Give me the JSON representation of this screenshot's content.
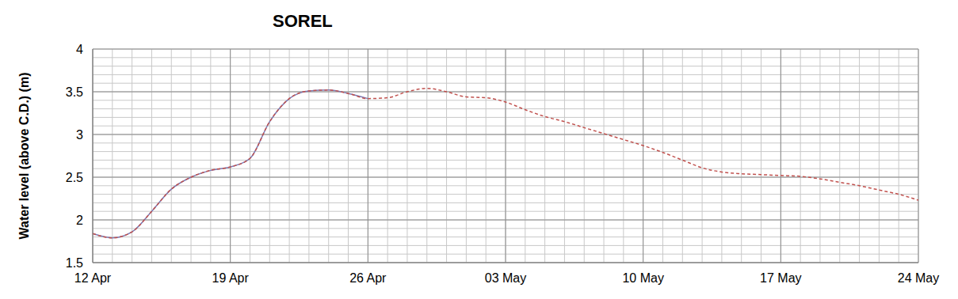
{
  "chart_data": {
    "type": "line",
    "title": "SOREL",
    "y_label": "Water level (above C.D.) (m)",
    "categories": [
      "12 Apr",
      null,
      null,
      null,
      null,
      null,
      null,
      "19 Apr",
      null,
      null,
      null,
      null,
      null,
      null,
      "26 Apr",
      null,
      null,
      null,
      null,
      null,
      null,
      "03 May",
      null,
      null,
      null,
      null,
      null,
      null,
      "10 May",
      null,
      null,
      null,
      null,
      null,
      null,
      "17 May",
      null,
      null,
      null,
      null,
      null,
      null,
      "24 May"
    ],
    "series": [
      {
        "color": "#7b7bb5",
        "line_style": "solid",
        "values": [
          1.84,
          1.79,
          1.86,
          2.1,
          2.36,
          2.5,
          2.58,
          2.62,
          2.72,
          3.15,
          3.42,
          3.51,
          3.52,
          3.48,
          3.42,
          null,
          null,
          null,
          null,
          null,
          null,
          null,
          null,
          null,
          null,
          null,
          null,
          null,
          null,
          null,
          null,
          null,
          null,
          null,
          null,
          null,
          null,
          null,
          null,
          null,
          null,
          null,
          null
        ]
      },
      {
        "color": "#c0504d",
        "line_style": "dashed",
        "values": [
          1.84,
          1.79,
          1.86,
          2.1,
          2.36,
          2.5,
          2.58,
          2.62,
          2.72,
          3.15,
          3.42,
          3.51,
          3.52,
          3.48,
          3.42,
          3.43,
          3.5,
          3.54,
          3.5,
          3.44,
          3.43,
          3.38,
          3.29,
          3.21,
          3.15,
          3.08,
          3.01,
          2.94,
          2.87,
          2.79,
          2.7,
          2.61,
          2.56,
          2.54,
          2.53,
          2.52,
          2.51,
          2.48,
          2.44,
          2.4,
          2.35,
          2.3,
          2.23
        ]
      }
    ],
    "ylim": [
      1.5,
      4
    ],
    "yticks": [
      1.5,
      2,
      2.5,
      3,
      3.5,
      4
    ],
    "grid": true
  }
}
